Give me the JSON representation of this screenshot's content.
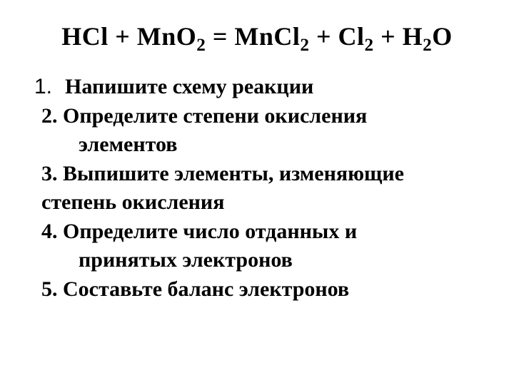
{
  "equation": {
    "parts": [
      {
        "text": "HCl + MnO",
        "sub": "2"
      },
      {
        "text": " = MnCl",
        "sub": "2"
      },
      {
        "text": " + Cl",
        "sub": "2"
      },
      {
        "text": " + H",
        "sub": "2"
      },
      {
        "text": "O"
      }
    ],
    "fontsize": 36,
    "color": "#000000"
  },
  "list": {
    "fontsize": 30,
    "color": "#000000",
    "items": [
      {
        "num": "1.",
        "text": "Напишите схему реакции"
      },
      {
        "num": "2.",
        "text": "Определите степени окисления",
        "cont": "элементов"
      },
      {
        "num": "3.",
        "text": "Выпишите элементы, изменяющие",
        "cont2": "степень окисления"
      },
      {
        "num": "4.",
        "text": "Определите число отданных и",
        "cont": "принятых электронов"
      },
      {
        "num": "5.",
        "text": "Составьте баланс электронов"
      }
    ]
  },
  "background_color": "#ffffff"
}
